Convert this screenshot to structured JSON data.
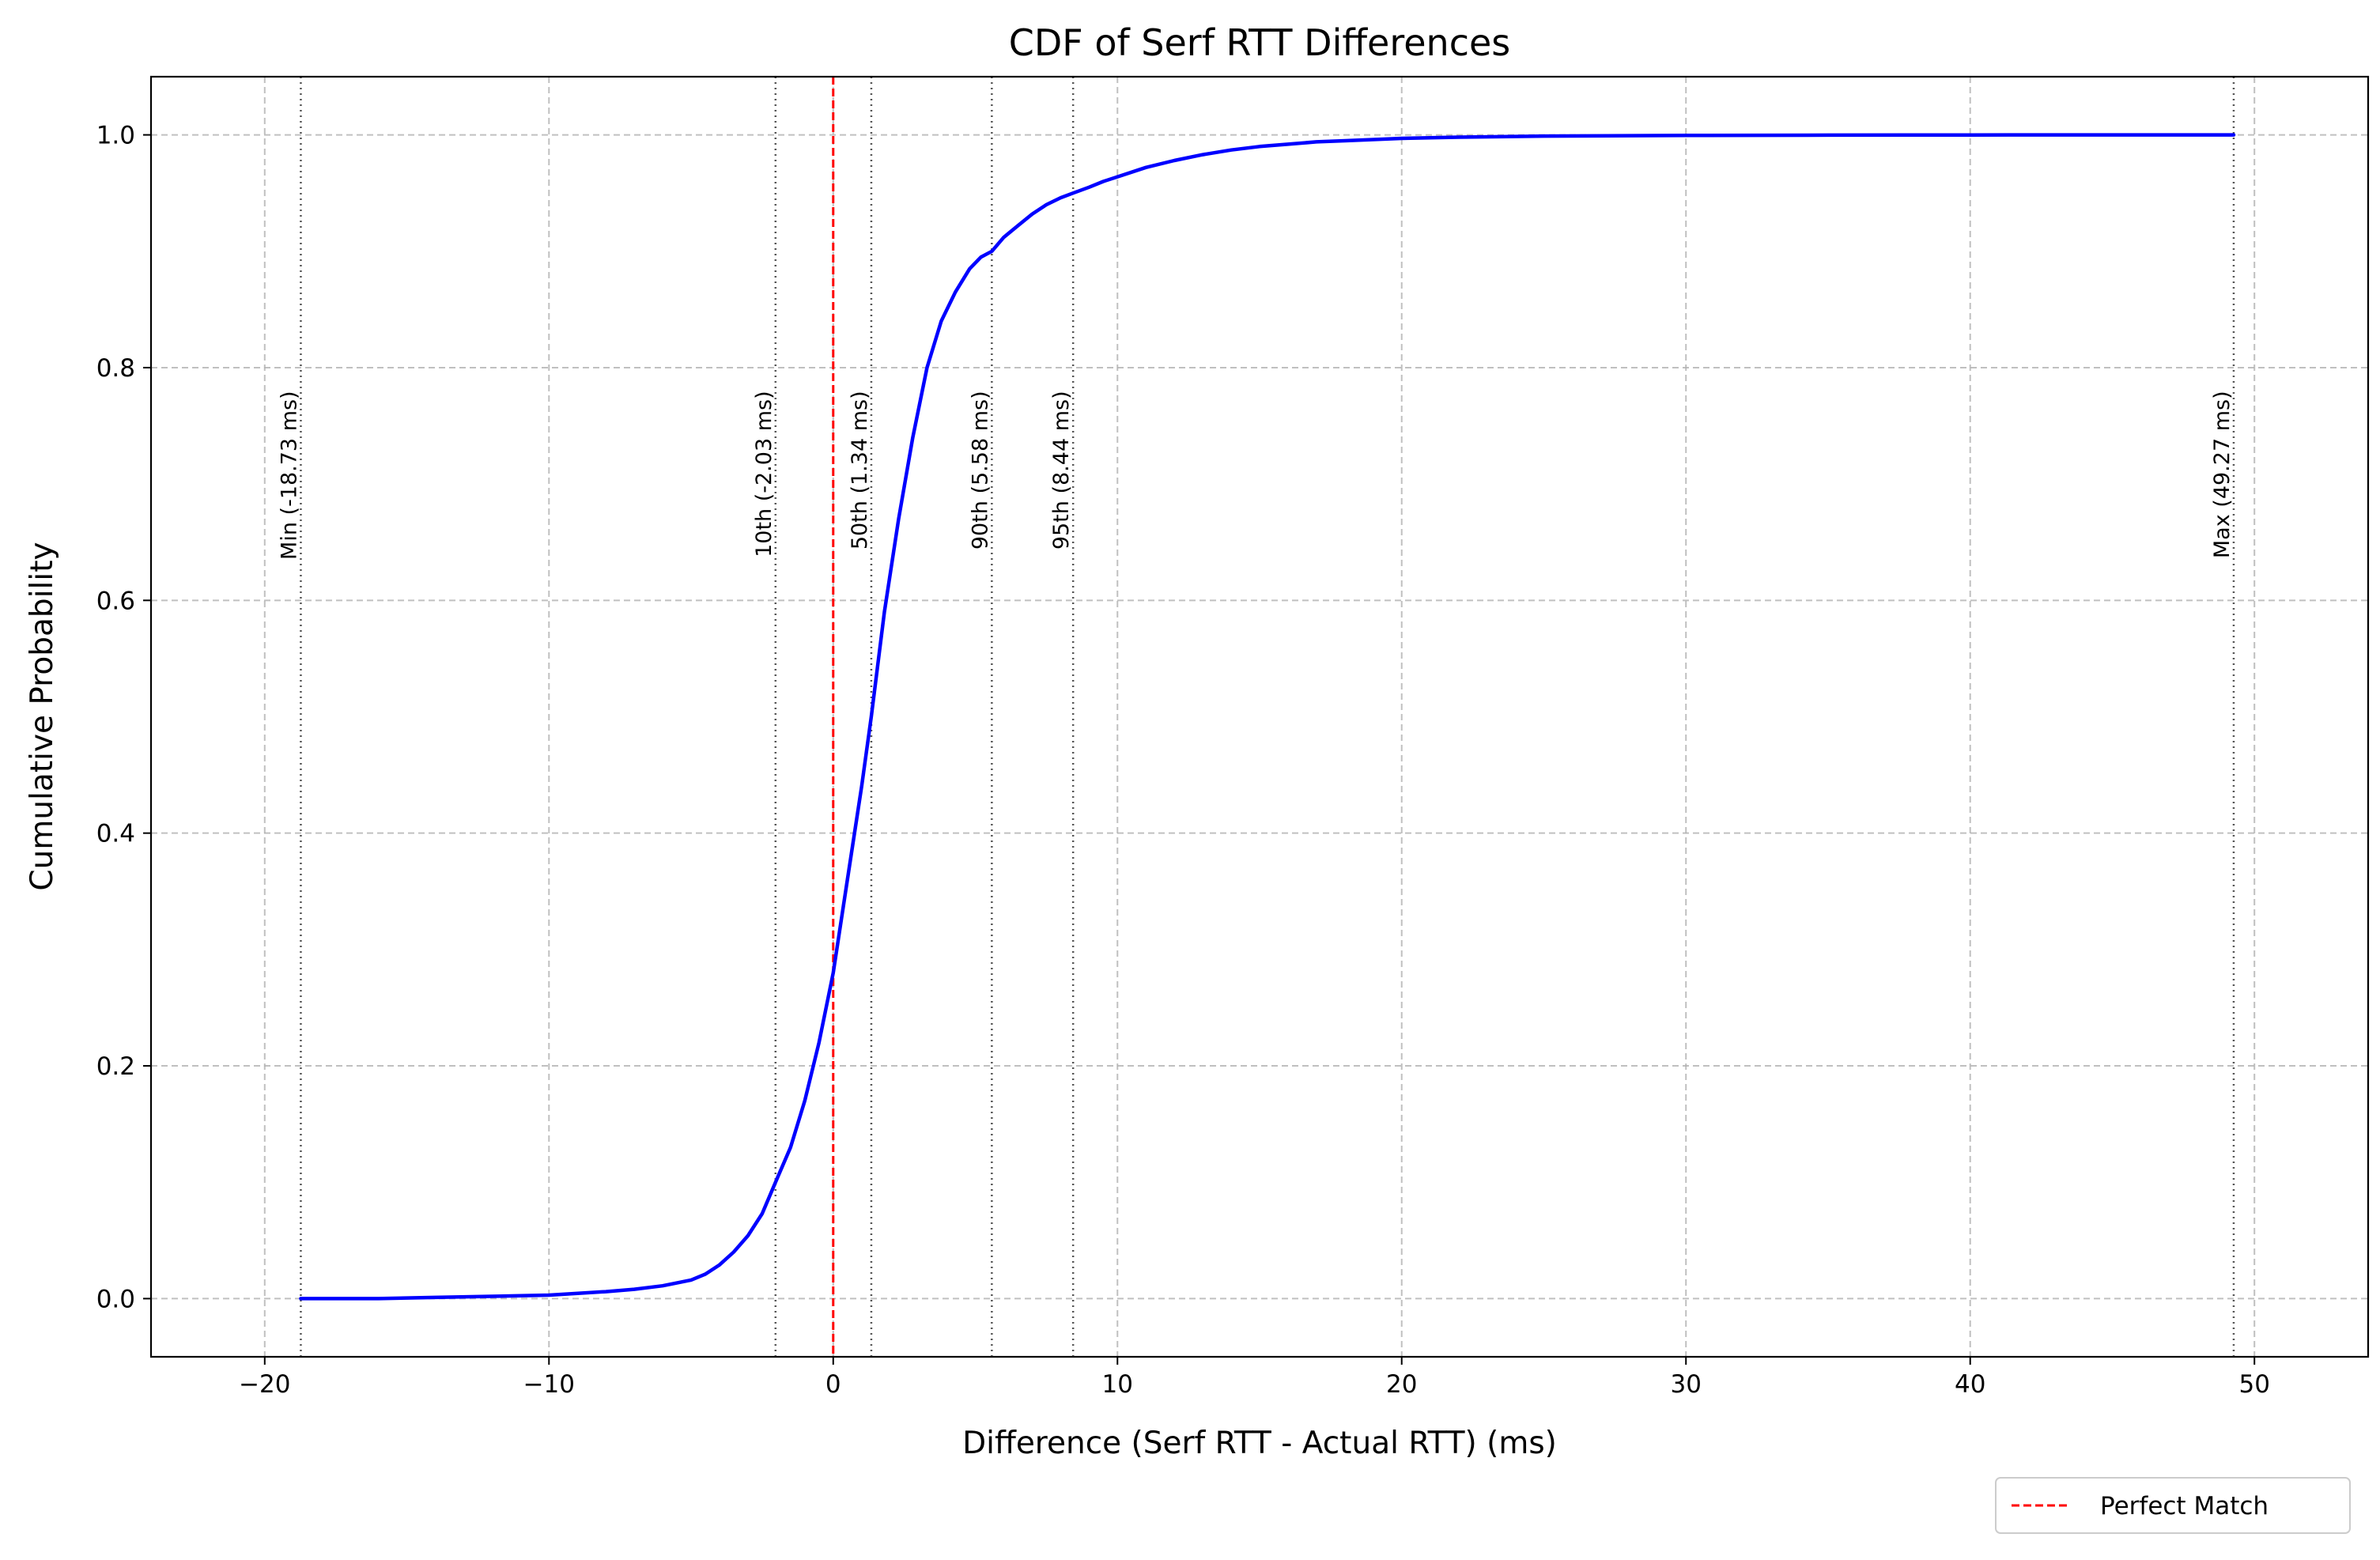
{
  "chart_data": {
    "type": "line",
    "title": "CDF of Serf RTT Differences",
    "xlabel": "Difference (Serf RTT - Actual RTT) (ms)",
    "ylabel": "Cumulative Probability",
    "xlim": [
      -24,
      54
    ],
    "ylim": [
      -0.05,
      1.05
    ],
    "x_ticks": [
      -20,
      -10,
      0,
      10,
      20,
      30,
      40,
      50
    ],
    "x_tick_labels": [
      "−20",
      "−10",
      "0",
      "10",
      "20",
      "30",
      "40",
      "50"
    ],
    "y_ticks": [
      0.0,
      0.2,
      0.4,
      0.6,
      0.8,
      1.0
    ],
    "y_tick_labels": [
      "0.0",
      "0.2",
      "0.4",
      "0.6",
      "0.8",
      "1.0"
    ],
    "grid": true,
    "series": [
      {
        "color": "#0000ff",
        "x": [
          -18.73,
          -16,
          -14,
          -12,
          -10,
          -8,
          -7,
          -6,
          -5,
          -4.5,
          -4,
          -3.5,
          -3,
          -2.5,
          -2.03,
          -1.5,
          -1,
          -0.5,
          0,
          0.5,
          1,
          1.34,
          1.8,
          2.3,
          2.8,
          3.3,
          3.8,
          4.3,
          4.8,
          5.2,
          5.58,
          6,
          6.5,
          7,
          7.5,
          8,
          8.44,
          9,
          9.5,
          10,
          11,
          12,
          13,
          14,
          15,
          16,
          17,
          18,
          20,
          22,
          25,
          30,
          35,
          40,
          45,
          49.27
        ],
        "y": [
          0.0,
          0.0,
          0.001,
          0.002,
          0.003,
          0.006,
          0.008,
          0.011,
          0.016,
          0.021,
          0.029,
          0.04,
          0.054,
          0.073,
          0.1,
          0.13,
          0.17,
          0.22,
          0.28,
          0.36,
          0.44,
          0.5,
          0.59,
          0.67,
          0.74,
          0.8,
          0.84,
          0.865,
          0.885,
          0.895,
          0.9,
          0.912,
          0.922,
          0.932,
          0.94,
          0.946,
          0.95,
          0.955,
          0.96,
          0.964,
          0.972,
          0.978,
          0.983,
          0.987,
          0.99,
          0.992,
          0.994,
          0.995,
          0.997,
          0.998,
          0.999,
          0.9995,
          0.9998,
          0.9999,
          1.0,
          1.0
        ]
      }
    ],
    "reference_line": {
      "x": 0,
      "color": "#ff0000",
      "style": "dashed",
      "label": "Perfect Match"
    },
    "percentile_markers": [
      {
        "x": -18.73,
        "label": "Min (-18.73 ms)"
      },
      {
        "x": -2.03,
        "label": "10th (-2.03 ms)"
      },
      {
        "x": 1.34,
        "label": "50th (1.34 ms)"
      },
      {
        "x": 5.58,
        "label": "90th (5.58 ms)"
      },
      {
        "x": 8.44,
        "label": "95th (8.44 ms)"
      },
      {
        "x": 49.27,
        "label": "Max (49.27 ms)"
      }
    ],
    "legend": {
      "position": "below-right",
      "entries": [
        "Perfect Match"
      ]
    }
  }
}
